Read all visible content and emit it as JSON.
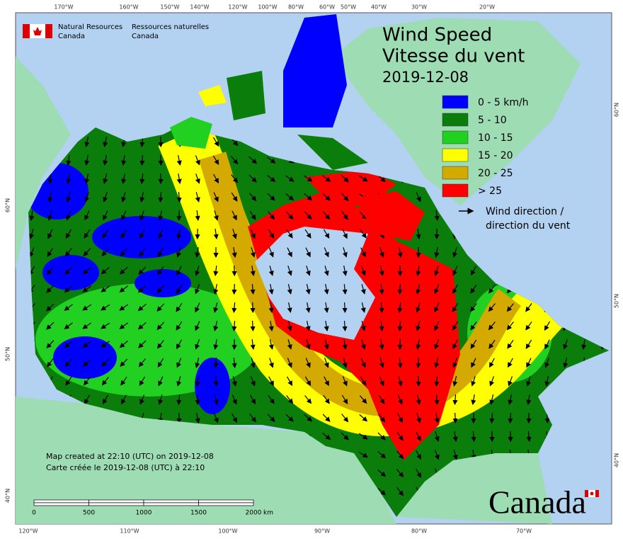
{
  "header": {
    "agency_en": [
      "Natural Resources",
      "Canada"
    ],
    "agency_fr": [
      "Ressources naturelles",
      "Canada"
    ]
  },
  "title": {
    "line1": "Wind Speed",
    "line2": "Vitesse du vent",
    "date": "2019-12-08"
  },
  "legend": {
    "items": [
      {
        "label": "0 - 5 km/h",
        "color": "#0000ff"
      },
      {
        "label": "5 - 10",
        "color": "#0a7d0a"
      },
      {
        "label": "10 - 15",
        "color": "#22d022"
      },
      {
        "label": "15 - 20",
        "color": "#ffff00"
      },
      {
        "label": "20 - 25",
        "color": "#d4aa00"
      },
      {
        "label": "> 25",
        "color": "#ff0000"
      }
    ],
    "arrow_label": [
      "Wind direction /",
      "direction du vent"
    ]
  },
  "notes": [
    "Map created at 22:10 (UTC) on 2019-12-08",
    "Carte créée le 2019-12-08 (UTC) à 22:10"
  ],
  "scale": {
    "labels": [
      "0",
      "500",
      "1000",
      "1500",
      "2000"
    ],
    "unit": "km"
  },
  "graticule": {
    "top": [
      "170°W",
      "160°W",
      "150°W",
      "140°W",
      "120°W",
      "100°W",
      "80°W",
      "60°W",
      "50°W",
      "40°W",
      "30°W",
      "20°W"
    ],
    "bottom": [
      "120°W",
      "110°W",
      "100°W",
      "90°W",
      "80°W",
      "70°W"
    ],
    "left": [
      "60°N",
      "50°N",
      "40°N"
    ],
    "right": [
      "60°N",
      "50°N",
      "40°N"
    ]
  },
  "wordmark": "Canada"
}
